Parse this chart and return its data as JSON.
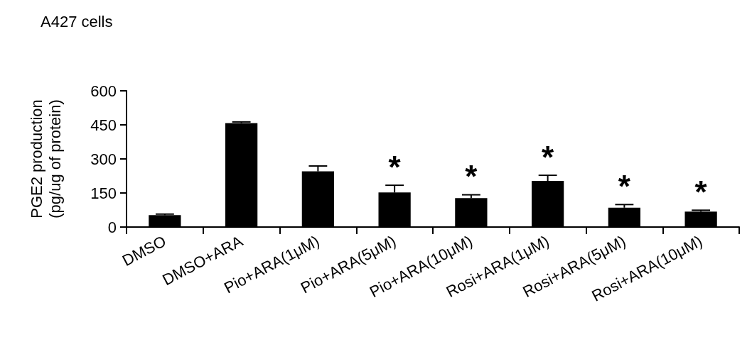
{
  "chart_data": {
    "type": "bar",
    "title": "A427 cells",
    "ylabel": "PGE2 production\n(pg/ug of protein)",
    "categories": [
      "DMSO",
      "DMSO+ARA",
      "Pio+ARA(1μM)",
      "Pio+ARA(5μM)",
      "Pio+ARA(10μM)",
      "Rosi+ARA(1μM)",
      "Rosi+ARA(5μM)",
      "Rosi+ARA(10μM)"
    ],
    "values": [
      52,
      458,
      245,
      152,
      127,
      203,
      85,
      68
    ],
    "errors": [
      [
        52,
        57
      ],
      [
        458,
        463
      ],
      [
        245,
        269
      ],
      [
        152,
        184
      ],
      [
        127,
        142
      ],
      [
        203,
        228
      ],
      [
        85,
        99
      ],
      [
        68,
        74
      ]
    ],
    "color": "#000000",
    "ylim": [
      0,
      600
    ],
    "yticks": [
      0,
      150,
      300,
      450,
      600
    ],
    "annotations": [
      {
        "text": "*",
        "x": "Pio+ARA(5μM)",
        "y": 152
      },
      {
        "text": "*",
        "x": "Pio+ARA(10μM)",
        "y": 127
      },
      {
        "text": "*",
        "x": "Rosi+ARA(1μM)",
        "y": 203
      },
      {
        "text": "*",
        "x": "Rosi+ARA(5μM)",
        "y": 85
      },
      {
        "text": "*",
        "x": "Rosi+ARA(10μM)",
        "y": 68
      }
    ]
  }
}
